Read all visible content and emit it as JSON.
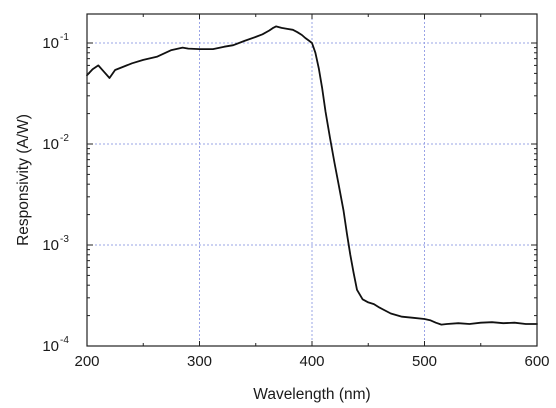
{
  "chart_data": {
    "type": "line",
    "title": "",
    "xlabel": "Wavelength (nm)",
    "ylabel": "Responsivity (A/W)",
    "x_scale": "linear",
    "y_scale": "log",
    "xlim": [
      200,
      600
    ],
    "ylim": [
      0.0001,
      0.2
    ],
    "x_ticks": [
      200,
      300,
      400,
      500,
      600
    ],
    "y_ticks": [
      {
        "value": 0.1,
        "base": "10",
        "exp": "-1"
      },
      {
        "value": 0.01,
        "base": "10",
        "exp": "-2"
      },
      {
        "value": 0.001,
        "base": "10",
        "exp": "-3"
      },
      {
        "value": 0.0001,
        "base": "10",
        "exp": "-4"
      }
    ],
    "grid": true,
    "grid_color": "#9aa4e6",
    "line_color": "#111111",
    "series": [
      {
        "x": [
          200,
          205,
          210,
          215,
          220,
          225,
          232,
          240,
          250,
          262,
          275,
          285,
          290,
          300,
          312,
          322,
          330,
          340,
          350,
          356,
          362,
          365,
          368,
          373,
          378,
          383,
          387,
          391,
          394,
          397,
          400,
          403,
          406,
          409,
          412,
          416,
          420,
          424,
          428,
          431,
          434,
          437,
          440,
          445,
          450,
          455,
          460,
          470,
          480,
          490,
          500,
          505,
          510,
          515,
          520,
          530,
          540,
          550,
          560,
          570,
          580,
          590,
          600
        ],
        "y": [
          0.048,
          0.055,
          0.06,
          0.052,
          0.045,
          0.054,
          0.058,
          0.063,
          0.068,
          0.073,
          0.085,
          0.09,
          0.088,
          0.087,
          0.087,
          0.092,
          0.095,
          0.105,
          0.115,
          0.122,
          0.133,
          0.14,
          0.146,
          0.141,
          0.138,
          0.135,
          0.128,
          0.12,
          0.112,
          0.106,
          0.1,
          0.08,
          0.056,
          0.036,
          0.021,
          0.0115,
          0.0065,
          0.0038,
          0.0022,
          0.0013,
          0.0008,
          0.00053,
          0.00036,
          0.00029,
          0.00027,
          0.00026,
          0.00024,
          0.00021,
          0.000195,
          0.00019,
          0.000185,
          0.00018,
          0.00017,
          0.000163,
          0.000165,
          0.000168,
          0.000165,
          0.00017,
          0.000172,
          0.000168,
          0.00017,
          0.000165,
          0.000165
        ]
      }
    ]
  }
}
